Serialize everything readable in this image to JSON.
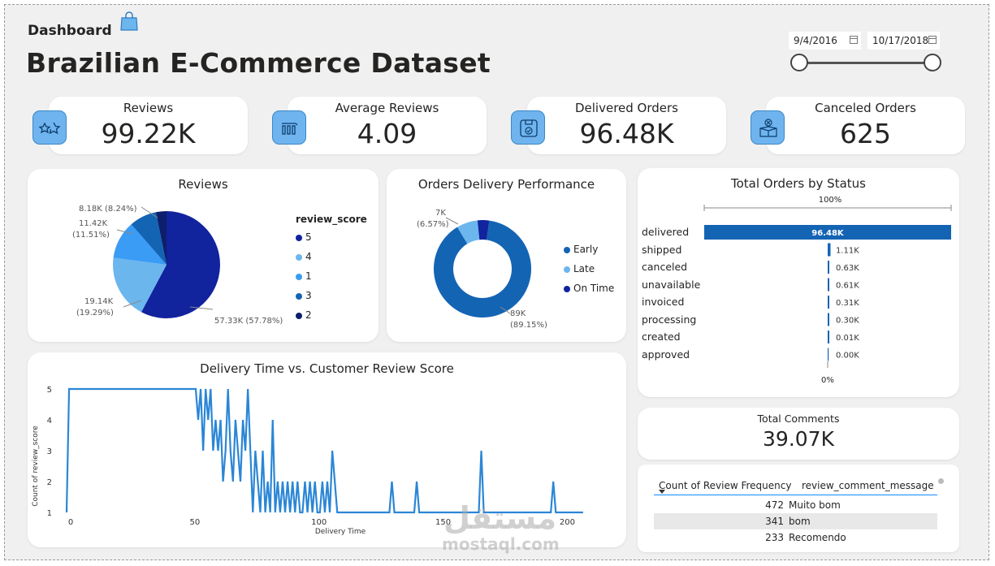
{
  "header": {
    "dashboard_label": "Dashboard",
    "title": "Brazilian E-Commerce Dataset",
    "date_start": "9/4/2016",
    "date_end": "10/17/2018"
  },
  "kpis": [
    {
      "label": "Reviews",
      "value": "99.22K",
      "icon": "stars-icon"
    },
    {
      "label": "Average Reviews",
      "value": "4.09",
      "icon": "bar-chart-icon"
    },
    {
      "label": "Delivered Orders",
      "value": "96.48K",
      "icon": "box-check-icon"
    },
    {
      "label": "Canceled Orders",
      "value": "625",
      "icon": "box-cancel-icon"
    }
  ],
  "colors": {
    "navy": "#12239e",
    "blue": "#118dff",
    "dark_blue": "#1464b4",
    "light_blue": "#6cb6ee",
    "mid_blue": "#3a9cf5",
    "line": "#2b86d6"
  },
  "chart_data": [
    {
      "type": "pie",
      "title": "Reviews",
      "legend_title": "review_score",
      "categories": [
        "5",
        "4",
        "1",
        "3",
        "2"
      ],
      "values": [
        57.33,
        19.14,
        11.42,
        8.18,
        3.15
      ],
      "labels": {
        "5": "57.33K (57.78%)",
        "4_value": "19.14K",
        "4_pct": "(19.29%)",
        "1_value": "11.42K",
        "1_pct": "(11.51%)",
        "3": "8.18K (8.24%)"
      }
    },
    {
      "type": "pie",
      "title": "Orders Delivery Performance",
      "categories": [
        "Early",
        "Late",
        "On Time"
      ],
      "values": [
        89,
        7,
        3.85
      ],
      "labels": {
        "early_value": "89K",
        "early_pct": "(89.15%)",
        "late_value": "7K",
        "late_pct": "(6.57%)"
      }
    },
    {
      "type": "bar",
      "title": "Total Orders by Status",
      "axis_top": "100%",
      "axis_bottom": "0%",
      "categories": [
        "delivered",
        "shipped",
        "canceled",
        "unavailable",
        "invoiced",
        "processing",
        "created",
        "approved"
      ],
      "values": [
        96.48,
        1.11,
        0.63,
        0.61,
        0.31,
        0.3,
        0.01,
        0.0
      ],
      "value_labels": [
        "96.48K",
        "1.11K",
        "0.63K",
        "0.61K",
        "0.31K",
        "0.30K",
        "0.01K",
        "0.00K"
      ]
    },
    {
      "type": "line",
      "title": "Delivery Time vs. Customer Review Score",
      "xlabel": "Delivery Time",
      "ylabel": "Count of review_score",
      "xlim": [
        0,
        210
      ],
      "ylim": [
        1,
        5
      ],
      "xticks": [
        "0",
        "50",
        "100",
        "150",
        "200"
      ],
      "yticks": [
        "1",
        "2",
        "3",
        "4",
        "5"
      ],
      "x": [
        0,
        1,
        52,
        53,
        54,
        55,
        56,
        57,
        58,
        59,
        60,
        61,
        62,
        63,
        64,
        65,
        66,
        67,
        68,
        69,
        70,
        71,
        72,
        73,
        74,
        75,
        76,
        77,
        78,
        79,
        80,
        81,
        82,
        83,
        84,
        85,
        86,
        87,
        88,
        89,
        90,
        91,
        92,
        93,
        94,
        95,
        96,
        97,
        98,
        99,
        100,
        101,
        102,
        103,
        104,
        105,
        106,
        107,
        108,
        109,
        130,
        131,
        132,
        140,
        141,
        142,
        166,
        167,
        168,
        195,
        196,
        197,
        208
      ],
      "y": [
        1,
        5,
        5,
        4,
        5,
        3,
        5,
        4,
        5,
        3,
        4,
        3,
        4,
        2,
        3,
        5,
        3,
        2,
        4,
        3,
        2,
        4,
        3,
        5,
        3,
        1,
        3,
        2,
        1,
        3,
        1,
        2,
        1,
        4,
        1,
        2,
        1,
        2,
        1,
        2,
        1,
        2,
        1,
        2,
        1,
        1,
        2,
        1,
        2,
        1,
        2,
        1,
        1,
        2,
        1,
        2,
        1,
        3,
        2,
        1,
        1,
        2,
        1,
        1,
        2,
        1,
        1,
        3,
        1,
        1,
        2,
        1,
        1
      ]
    }
  ],
  "comments": {
    "title": "Total Comments",
    "value": "39.07K",
    "columns": [
      "Count of Review Frequency",
      "review_comment_message"
    ],
    "rows": [
      {
        "count": "472",
        "message": "Muito bom"
      },
      {
        "count": "341",
        "message": "bom"
      },
      {
        "count": "233",
        "message": "Recomendo"
      }
    ]
  },
  "watermark": {
    "arabic": "مستقل",
    "latin": "mostaql.com"
  }
}
